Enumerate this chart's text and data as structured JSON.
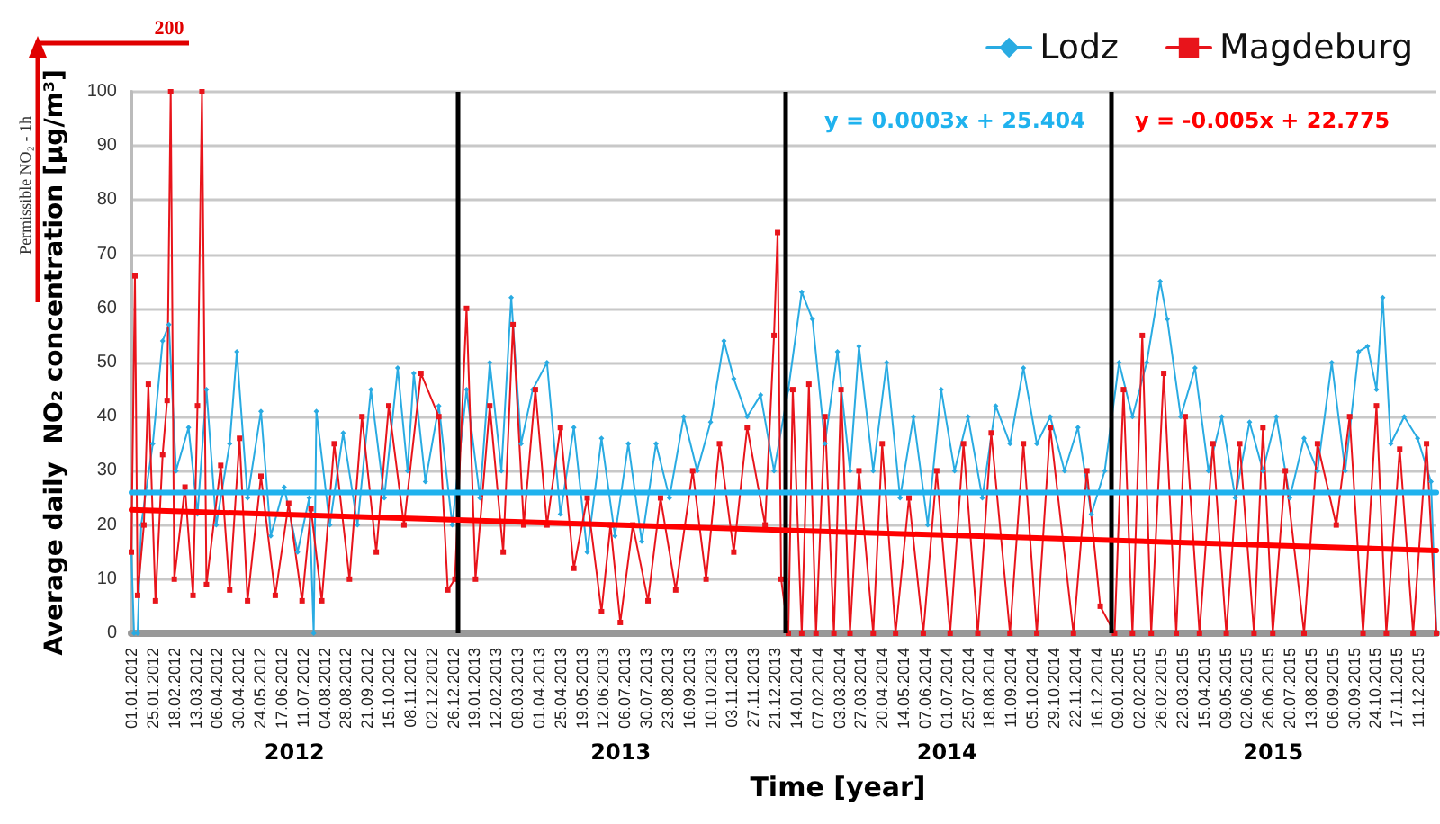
{
  "chart_data": {
    "type": "line",
    "ylabel": "Average daily  NO₂ concentration [µg/m³]",
    "xlabel": "Time [year]",
    "xlim": [
      "2012-01-01",
      "2015-12-31"
    ],
    "ylim": [
      0,
      100
    ],
    "yticks": [
      0,
      10,
      20,
      30,
      40,
      50,
      60,
      70,
      80,
      90,
      100
    ],
    "xticks": [
      {
        "value": "2012-01-01",
        "label": "01.01.2012"
      },
      {
        "value": "2012-01-25",
        "label": "25.01.2012"
      },
      {
        "value": "2012-02-18",
        "label": "18.02.2012"
      },
      {
        "value": "2012-03-13",
        "label": "13.03.2012"
      },
      {
        "value": "2012-04-06",
        "label": "06.04.2012"
      },
      {
        "value": "2012-04-30",
        "label": "30.04.2012"
      },
      {
        "value": "2012-05-24",
        "label": "24.05.2012"
      },
      {
        "value": "2012-06-17",
        "label": "17.06.2012"
      },
      {
        "value": "2012-07-11",
        "label": "11.07.2012"
      },
      {
        "value": "2012-08-04",
        "label": "04.08.2012"
      },
      {
        "value": "2012-08-28",
        "label": "28.08.2012"
      },
      {
        "value": "2012-09-21",
        "label": "21.09.2012"
      },
      {
        "value": "2012-10-15",
        "label": "15.10.2012"
      },
      {
        "value": "2012-11-08",
        "label": "08.11.2012"
      },
      {
        "value": "2012-12-02",
        "label": "02.12.2012"
      },
      {
        "value": "2012-12-26",
        "label": "26.12.2012"
      },
      {
        "value": "2013-01-19",
        "label": "19.01.2013"
      },
      {
        "value": "2013-02-12",
        "label": "12.02.2013"
      },
      {
        "value": "2013-03-08",
        "label": "08.03.2013"
      },
      {
        "value": "2013-04-01",
        "label": "01.04.2013"
      },
      {
        "value": "2013-04-25",
        "label": "25.04.2013"
      },
      {
        "value": "2013-05-19",
        "label": "19.05.2013"
      },
      {
        "value": "2013-06-12",
        "label": "12.06.2013"
      },
      {
        "value": "2013-07-06",
        "label": "06.07.2013"
      },
      {
        "value": "2013-07-30",
        "label": "30.07.2013"
      },
      {
        "value": "2013-08-23",
        "label": "23.08.2013"
      },
      {
        "value": "2013-09-16",
        "label": "16.09.2013"
      },
      {
        "value": "2013-10-10",
        "label": "10.10.2013"
      },
      {
        "value": "2013-11-03",
        "label": "03.11.2013"
      },
      {
        "value": "2013-11-27",
        "label": "27.11.2013"
      },
      {
        "value": "2013-12-21",
        "label": "21.12.2013"
      },
      {
        "value": "2014-01-14",
        "label": "14.01.2014"
      },
      {
        "value": "2014-02-07",
        "label": "07.02.2014"
      },
      {
        "value": "2014-03-03",
        "label": "03.03.2014"
      },
      {
        "value": "2014-03-27",
        "label": "27.03.2014"
      },
      {
        "value": "2014-04-20",
        "label": "20.04.2014"
      },
      {
        "value": "2014-05-14",
        "label": "14.05.2014"
      },
      {
        "value": "2014-06-07",
        "label": "07.06.2014"
      },
      {
        "value": "2014-07-01",
        "label": "01.07.2014"
      },
      {
        "value": "2014-07-25",
        "label": "25.07.2014"
      },
      {
        "value": "2014-08-18",
        "label": "18.08.2014"
      },
      {
        "value": "2014-09-11",
        "label": "11.09.2014"
      },
      {
        "value": "2014-10-05",
        "label": "05.10.2014"
      },
      {
        "value": "2014-10-29",
        "label": "29.10.2014"
      },
      {
        "value": "2014-11-22",
        "label": "22.11.2014"
      },
      {
        "value": "2014-12-16",
        "label": "16.12.2014"
      },
      {
        "value": "2015-01-09",
        "label": "09.01.2015"
      },
      {
        "value": "2015-02-02",
        "label": "02.02.2015"
      },
      {
        "value": "2015-02-26",
        "label": "26.02.2015"
      },
      {
        "value": "2015-03-22",
        "label": "22.03.2015"
      },
      {
        "value": "2015-04-15",
        "label": "15.04.2015"
      },
      {
        "value": "2015-05-09",
        "label": "09.05.2015"
      },
      {
        "value": "2015-06-02",
        "label": "02.06.2015"
      },
      {
        "value": "2015-06-26",
        "label": "26.06.2015"
      },
      {
        "value": "2015-07-20",
        "label": "20.07.2015"
      },
      {
        "value": "2015-08-13",
        "label": "13.08.2015"
      },
      {
        "value": "2015-09-06",
        "label": "06.09.2015"
      },
      {
        "value": "2015-09-30",
        "label": "30.09.2015"
      },
      {
        "value": "2015-10-24",
        "label": "24.10.2015"
      },
      {
        "value": "2015-11-17",
        "label": "17.11.2015"
      },
      {
        "value": "2015-12-11",
        "label": "11.12.2015"
      }
    ],
    "grid": "y",
    "legend": "top right",
    "ref_lines": [
      {
        "axis": "x",
        "value": "2013-01-01",
        "color": "#000000"
      },
      {
        "axis": "x",
        "value": "2014-01-01",
        "color": "#000000"
      },
      {
        "axis": "x",
        "value": "2015-01-01",
        "color": "#000000"
      }
    ],
    "annotations": [
      "200",
      "Permissible NO₂ - 1h",
      "2012",
      "2013",
      "2014",
      "2015"
    ],
    "series": [
      {
        "name": "Lodz",
        "color": "#29abe2",
        "marker": "diamond",
        "x": [
          "2012-01-01",
          "2012-01-04",
          "2012-01-08",
          "2012-01-12",
          "2012-01-25",
          "2012-02-05",
          "2012-02-12",
          "2012-02-20",
          "2012-03-05",
          "2012-03-15",
          "2012-03-25",
          "2012-04-05",
          "2012-04-20",
          "2012-04-28",
          "2012-05-10",
          "2012-05-25",
          "2012-06-05",
          "2012-06-20",
          "2012-07-05",
          "2012-07-18",
          "2012-07-23",
          "2012-07-26",
          "2012-08-10",
          "2012-08-25",
          "2012-09-10",
          "2012-09-25",
          "2012-10-10",
          "2012-10-25",
          "2012-11-05",
          "2012-11-12",
          "2012-11-25",
          "2012-12-10",
          "2012-12-25",
          "2013-01-10",
          "2013-01-25",
          "2013-02-05",
          "2013-02-18",
          "2013-03-01",
          "2013-03-12",
          "2013-03-25",
          "2013-04-10",
          "2013-04-25",
          "2013-05-10",
          "2013-05-25",
          "2013-06-10",
          "2013-06-25",
          "2013-07-10",
          "2013-07-25",
          "2013-08-10",
          "2013-08-25",
          "2013-09-10",
          "2013-09-25",
          "2013-10-10",
          "2013-10-25",
          "2013-11-05",
          "2013-11-20",
          "2013-12-05",
          "2013-12-20",
          "2014-01-05",
          "2014-01-20",
          "2014-02-01",
          "2014-02-15",
          "2014-03-01",
          "2014-03-15",
          "2014-03-25",
          "2014-04-10",
          "2014-04-25",
          "2014-05-10",
          "2014-05-25",
          "2014-06-10",
          "2014-06-25",
          "2014-07-10",
          "2014-07-25",
          "2014-08-10",
          "2014-08-25",
          "2014-09-10",
          "2014-09-25",
          "2014-10-10",
          "2014-10-25",
          "2014-11-10",
          "2014-11-25",
          "2014-12-10",
          "2014-12-25",
          "2015-01-10",
          "2015-01-25",
          "2015-02-10",
          "2015-02-25",
          "2015-03-05",
          "2015-03-20",
          "2015-04-05",
          "2015-04-20",
          "2015-05-05",
          "2015-05-20",
          "2015-06-05",
          "2015-06-20",
          "2015-07-05",
          "2015-07-20",
          "2015-08-05",
          "2015-08-20",
          "2015-09-05",
          "2015-09-20",
          "2015-10-05",
          "2015-10-15",
          "2015-10-25",
          "2015-11-01",
          "2015-11-10",
          "2015-11-25",
          "2015-12-10",
          "2015-12-25",
          "2015-12-31"
        ],
        "values": [
          15,
          0,
          0,
          20,
          35,
          54,
          57,
          30,
          38,
          22,
          45,
          20,
          35,
          52,
          25,
          41,
          18,
          27,
          15,
          25,
          0,
          41,
          20,
          37,
          20,
          45,
          25,
          49,
          30,
          48,
          28,
          42,
          20,
          45,
          25,
          50,
          30,
          62,
          35,
          45,
          50,
          22,
          38,
          15,
          36,
          18,
          35,
          17,
          35,
          25,
          40,
          30,
          39,
          54,
          47,
          40,
          44,
          30,
          45,
          63,
          58,
          35,
          52,
          30,
          53,
          30,
          50,
          25,
          40,
          20,
          45,
          30,
          40,
          25,
          42,
          35,
          49,
          35,
          40,
          30,
          38,
          22,
          30,
          50,
          40,
          50,
          65,
          58,
          40,
          49,
          30,
          40,
          25,
          39,
          30,
          40,
          25,
          36,
          30,
          50,
          30,
          52,
          53,
          45,
          62,
          35,
          40,
          36,
          28,
          0
        ]
      },
      {
        "name": "Magdeburg",
        "color": "#e8141b",
        "marker": "square",
        "x": [
          "2012-01-01",
          "2012-01-05",
          "2012-01-08",
          "2012-01-15",
          "2012-01-20",
          "2012-01-28",
          "2012-02-05",
          "2012-02-10",
          "2012-02-14",
          "2012-02-18",
          "2012-03-01",
          "2012-03-10",
          "2012-03-15",
          "2012-03-20",
          "2012-03-25",
          "2012-04-10",
          "2012-04-20",
          "2012-05-01",
          "2012-05-10",
          "2012-05-25",
          "2012-06-10",
          "2012-06-25",
          "2012-07-10",
          "2012-07-20",
          "2012-08-01",
          "2012-08-15",
          "2012-09-01",
          "2012-09-15",
          "2012-10-01",
          "2012-10-15",
          "2012-11-01",
          "2012-11-20",
          "2012-12-10",
          "2012-12-20",
          "2012-12-28",
          "2013-01-10",
          "2013-01-20",
          "2013-02-05",
          "2013-02-20",
          "2013-03-03",
          "2013-03-15",
          "2013-03-28",
          "2013-04-10",
          "2013-04-25",
          "2013-05-10",
          "2013-05-25",
          "2013-06-10",
          "2013-06-20",
          "2013-07-01",
          "2013-07-15",
          "2013-08-01",
          "2013-08-15",
          "2013-09-01",
          "2013-09-20",
          "2013-10-05",
          "2013-10-20",
          "2013-11-05",
          "2013-11-20",
          "2013-12-10",
          "2013-12-20",
          "2013-12-24",
          "2013-12-28",
          "2014-01-05",
          "2014-01-10",
          "2014-01-20",
          "2014-01-28",
          "2014-02-05",
          "2014-02-15",
          "2014-02-25",
          "2014-03-05",
          "2014-03-15",
          "2014-03-25",
          "2014-04-10",
          "2014-04-20",
          "2014-05-05",
          "2014-05-20",
          "2014-06-05",
          "2014-06-20",
          "2014-07-05",
          "2014-07-20",
          "2014-08-05",
          "2014-08-20",
          "2014-09-10",
          "2014-09-25",
          "2014-10-10",
          "2014-10-25",
          "2014-11-20",
          "2014-12-05",
          "2014-12-20",
          "2015-01-05",
          "2015-01-15",
          "2015-01-25",
          "2015-02-05",
          "2015-02-15",
          "2015-03-01",
          "2015-03-15",
          "2015-03-25",
          "2015-04-10",
          "2015-04-25",
          "2015-05-10",
          "2015-05-25",
          "2015-06-10",
          "2015-06-20",
          "2015-07-01",
          "2015-07-15",
          "2015-08-05",
          "2015-08-20",
          "2015-09-10",
          "2015-09-25",
          "2015-10-10",
          "2015-10-25",
          "2015-11-05",
          "2015-11-20",
          "2015-12-05",
          "2015-12-20",
          "2015-12-31"
        ],
        "values": [
          15,
          66,
          7,
          20,
          46,
          6,
          33,
          43,
          100,
          10,
          27,
          7,
          42,
          100,
          9,
          31,
          8,
          36,
          6,
          29,
          7,
          24,
          6,
          23,
          6,
          35,
          10,
          40,
          15,
          42,
          20,
          48,
          40,
          8,
          10,
          60,
          10,
          42,
          15,
          57,
          20,
          45,
          20,
          38,
          12,
          25,
          4,
          20,
          2,
          20,
          6,
          25,
          8,
          30,
          10,
          35,
          15,
          38,
          20,
          55,
          74,
          10,
          0,
          45,
          0,
          46,
          0,
          40,
          0,
          45,
          0,
          30,
          0,
          35,
          0,
          25,
          0,
          30,
          0,
          35,
          0,
          37,
          0,
          35,
          0,
          38,
          0,
          30,
          5,
          0,
          45,
          0,
          55,
          0,
          48,
          0,
          40,
          0,
          35,
          0,
          35,
          0,
          38,
          0,
          30,
          0,
          35,
          20,
          40,
          0,
          42,
          0,
          34,
          0,
          35,
          0
        ]
      },
      {
        "name": "y = 0.0003x + 25.404",
        "color": "#1fb2ee",
        "marker": "none",
        "x": [
          "2012-01-01",
          "2015-12-31"
        ],
        "values": [
          26,
          26
        ]
      },
      {
        "name": "y = -0.005x + 22.775",
        "color": "#ff0000",
        "marker": "none",
        "x": [
          "2012-01-01",
          "2015-12-31"
        ],
        "values": [
          22.8,
          15.3
        ]
      }
    ]
  }
}
